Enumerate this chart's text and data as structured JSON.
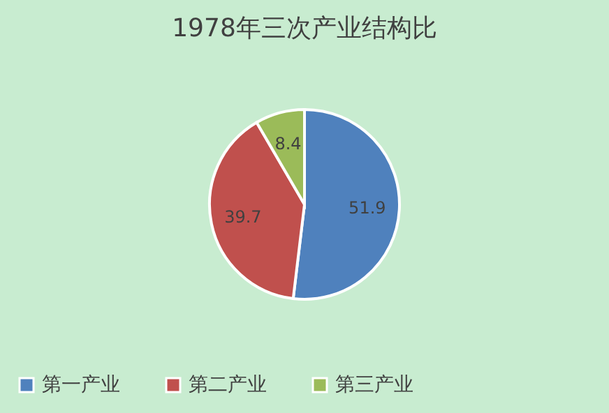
{
  "chart_data": {
    "type": "pie",
    "title": "1978年三次产业结构比",
    "categories": [
      "第一产业",
      "第二产业",
      "第三产业"
    ],
    "values": [
      51.9,
      39.7,
      8.4
    ],
    "colors": [
      "#4f81bd",
      "#c0504d",
      "#9bbb59"
    ],
    "data_labels": true,
    "legend": "bottom"
  }
}
